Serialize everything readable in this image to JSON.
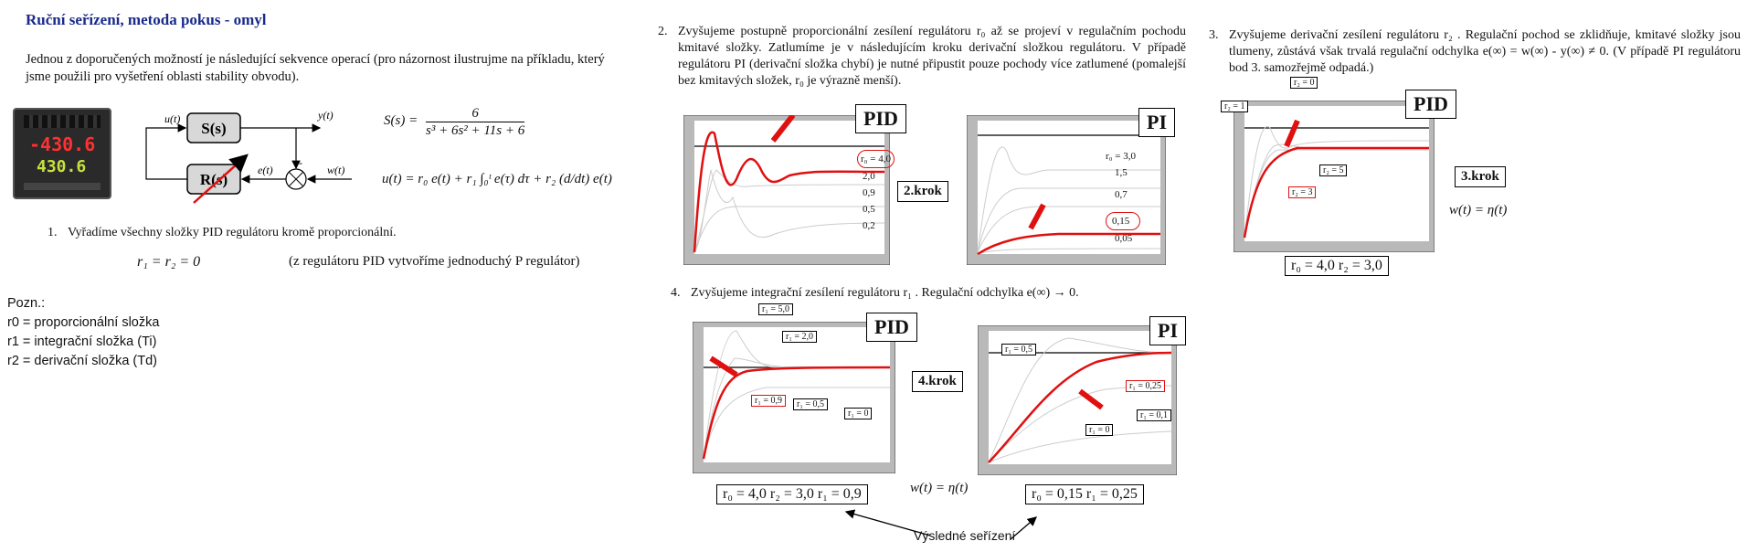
{
  "left": {
    "title": "Ruční seřízení, metoda pokus - omyl",
    "intro": "Jednou z doporučených možností je následující sekvence operací (pro názornost ilustrujme na příkladu, který jsme použili pro vyšetření oblasti stability obvodu).",
    "controller_display": {
      "top": "-430.6",
      "bottom": "430.6"
    },
    "block": {
      "s_label": "S(s)",
      "r_label": "R(s)",
      "u": "u(t)",
      "y": "y(t)",
      "e": "e(t)",
      "w": "w(t)",
      "plus": "+",
      "minus": "-"
    },
    "formula_s": {
      "lhs": "S(s) =",
      "num": "6",
      "den": "s³ + 6s² + 11s + 6"
    },
    "formula_u": "u(t) = r₀ e(t) + r₁ ∫₀ᵗ e(τ) dτ + r₂ (d/dt) e(t)",
    "step1": {
      "num": "1.",
      "text": "Vyřadíme všechny složky PID regulátoru kromě proporcionální.",
      "eq": "r₁ = r₂ = 0",
      "note": "(z regulátoru PID vytvoříme jednoduchý P regulátor)"
    },
    "pozn": {
      "head": "Pozn.:",
      "l1": "r0 = proporcionální složka",
      "l2": "r1 = integrační složka (Ti)",
      "l3": "r2 = derivační složka (Td)"
    }
  },
  "step2": {
    "num": "2.",
    "text": "Zvyšujeme postupně proporcionální zesílení regulátoru r₀ až se projeví v regulačním pochodu kmitavé složky. Zatlumíme je v následujícím kroku derivační složkou regulátoru. V případě regulátoru PI (derivační složka chybí) je nutné připustit pouze pochody více zatlumené (pomalejší bez kmitavých složek, r₀ je výrazně menší).",
    "pid_tag": "PID",
    "pi_tag": "PI",
    "krok": "2.krok",
    "pid_labels": [
      "r₀ = 4,0",
      "2,0",
      "0,9",
      "0,5",
      "0,2"
    ],
    "pi_labels": [
      "r₀ = 3,0",
      "1,5",
      "0,7",
      "0,15",
      "0,05"
    ]
  },
  "step3": {
    "num": "3.",
    "text": "Zvyšujeme derivační zesílení regulátoru r₂ . Regulační pochod se zklidňuje, kmitavé složky jsou tlumeny, zůstává však trvalá regulační odchylka e(∞) = w(∞) - y(∞) ≠ 0. (V případě PI regulátoru bod 3. samozřejmě odpadá.)",
    "pid_tag": "PID",
    "krok": "3.krok",
    "labels": [
      "r₂ = 0",
      "r₂ = 1",
      "r₂ = 5",
      "r₂ = 3"
    ],
    "w_eq": "w(t) = η(t)",
    "params": "r₀ = 4,0    r₂ = 3,0"
  },
  "step4": {
    "num": "4.",
    "text": "Zvyšujeme integrační zesílení regulátoru r₁ . Regulační odchylka e(∞) → 0.",
    "pid_tag": "PID",
    "pi_tag": "PI",
    "krok": "4.krok",
    "pid_labels": [
      "r₁ = 5,0",
      "r₁ = 2,0",
      "r₁ = 0,9",
      "r₁ = 0,5",
      "r₁ = 0"
    ],
    "pi_labels": [
      "r₁ = 0,5",
      "r₁ = 0,25",
      "r₁ = 0,1",
      "r₁ = 0"
    ],
    "w_eq": "w(t) = η(t)",
    "params_pid": "r₀ = 4,0    r₂ = 3,0    r₁ = 0,9",
    "params_pi": "r₀ = 0,15    r₁ = 0,25",
    "result": "Výsledné seřízení"
  },
  "colors": {
    "title": "#1a2a8c",
    "red": "#e01010",
    "plotbg": "#b9b9b9"
  }
}
